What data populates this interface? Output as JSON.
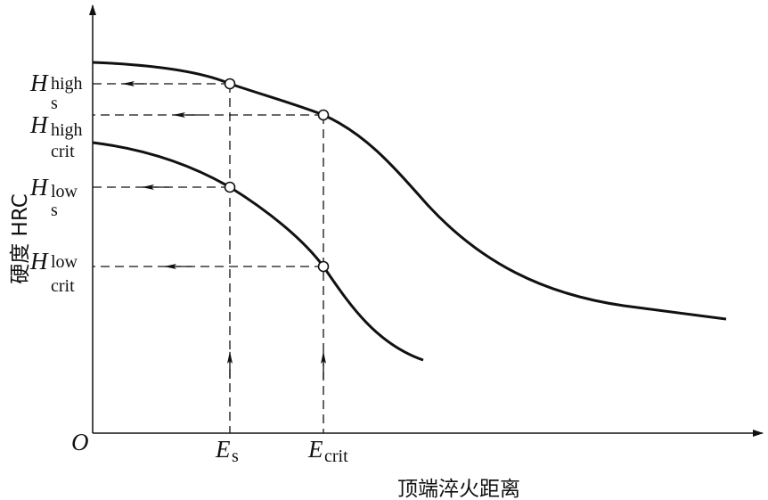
{
  "axes": {
    "origin": "O",
    "y_label": "硬度 HRC",
    "x_label": "顶端淬火距离"
  },
  "y_markers": [
    {
      "symbol": "H",
      "superscript": "high",
      "subscript": "s"
    },
    {
      "symbol": "H",
      "superscript": "high",
      "subscript": "crit"
    },
    {
      "symbol": "H",
      "superscript": "low",
      "subscript": "s"
    },
    {
      "symbol": "H",
      "superscript": "low",
      "subscript": "crit"
    }
  ],
  "x_markers": [
    {
      "symbol": "E",
      "subscript": "s"
    },
    {
      "symbol": "E",
      "subscript": "crit"
    }
  ]
}
